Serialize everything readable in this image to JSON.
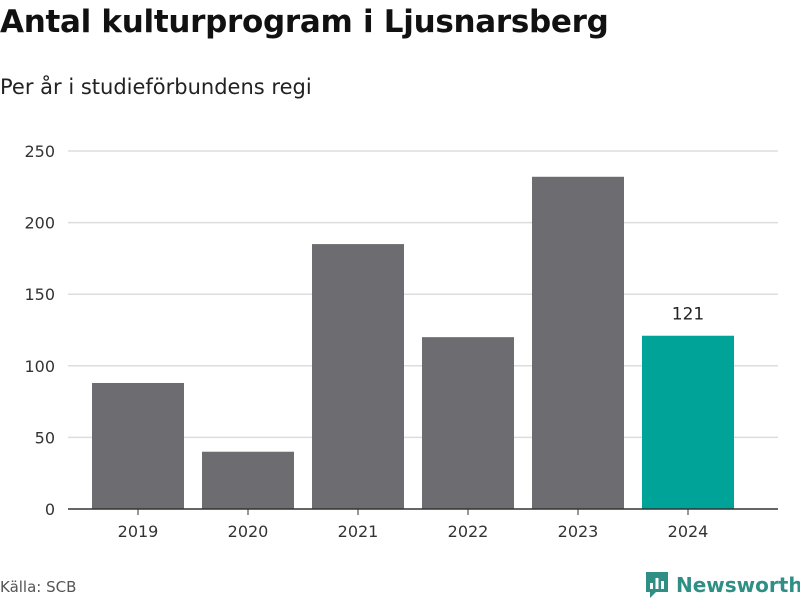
{
  "header": {
    "title": "Antal kulturprogram i Ljusnarsberg",
    "subtitle": "Per år i studieförbundens regi"
  },
  "footer": {
    "source": "Källa: SCB",
    "brand_name": "Newsworthy",
    "brand_icon": "bar-chart-bubble-icon"
  },
  "colors": {
    "bar_default": "#6d6c71",
    "bar_highlight": "#00a398",
    "grid": "#dddddd",
    "axis": "#333333",
    "brand": "#2f8f85"
  },
  "chart_data": {
    "type": "bar",
    "title": "Antal kulturprogram i Ljusnarsberg",
    "subtitle": "Per år i studieförbundens regi",
    "categories": [
      "2019",
      "2020",
      "2021",
      "2022",
      "2023",
      "2024"
    ],
    "values": [
      88,
      40,
      185,
      120,
      232,
      121
    ],
    "highlight_index": 5,
    "data_labels": [
      {
        "index": 5,
        "text": "121"
      }
    ],
    "xlabel": "",
    "ylabel": "",
    "ylim": [
      0,
      250
    ],
    "yticks": [
      0,
      50,
      100,
      150,
      200,
      250
    ],
    "grid": true
  }
}
